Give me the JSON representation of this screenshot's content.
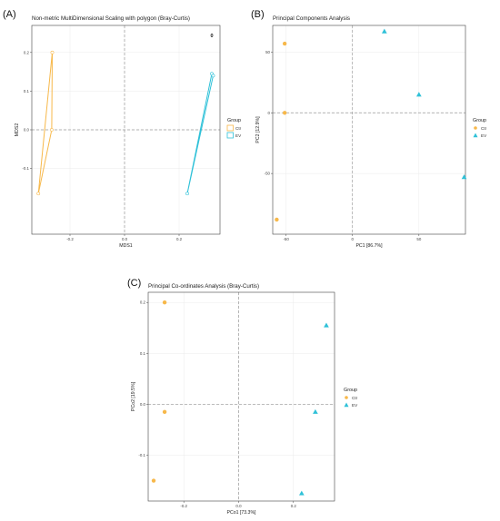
{
  "colors": {
    "ctr": "#F7B84A",
    "ev": "#2FC1D8",
    "zero_line": "#9a9a9a",
    "grid": "#ebebeb",
    "frame": "#444444"
  },
  "legend_title": "Group",
  "chart_data": [
    {
      "panel": "(A)",
      "type": "scatter",
      "title": "Non-metric MultiDimensional Scaling with polygon (Bray-Curtis)",
      "xlabel": "MDS1",
      "ylabel": "MDS2",
      "annotation": "0",
      "xlim": [
        -0.34,
        0.35
      ],
      "ylim": [
        -0.27,
        0.27
      ],
      "xticks": [
        -0.2,
        0.0,
        0.2
      ],
      "yticks": [
        -0.1,
        0.0,
        0.1,
        0.2
      ],
      "xtick_labels": [
        "-0.2",
        "0.0",
        "0.2"
      ],
      "ytick_labels": [
        "-0.1",
        "0.0",
        "0.1",
        "0.2"
      ],
      "polygon": true,
      "series": [
        {
          "name": "Ctr",
          "color": "#F7B84A",
          "marker": "circle",
          "x": [
            -0.265,
            -0.267,
            -0.316
          ],
          "y": [
            0.2,
            0.0,
            -0.165
          ]
        },
        {
          "name": "EV",
          "color": "#2FC1D8",
          "marker": "circle",
          "x": [
            0.32,
            0.325,
            0.23
          ],
          "y": [
            0.145,
            0.14,
            -0.165
          ]
        }
      ],
      "legend": [
        "Ctr",
        "EV"
      ]
    },
    {
      "panel": "(B)",
      "type": "scatter",
      "title": "Principal Components Analysis",
      "xlabel": "PC1 [86.7%]",
      "ylabel": "PC2 [12.9%]",
      "xlim": [
        -60,
        85
      ],
      "ylim": [
        -100,
        72
      ],
      "xticks": [
        -50,
        0,
        50
      ],
      "yticks": [
        -50,
        0,
        50
      ],
      "xtick_labels": [
        "-50",
        "0",
        "50"
      ],
      "ytick_labels": [
        "-50",
        "0",
        "50"
      ],
      "series": [
        {
          "name": "Ctr",
          "color": "#F7B84A",
          "marker": "circle",
          "x": [
            -51,
            -51,
            -57
          ],
          "y": [
            57,
            0,
            -88
          ]
        },
        {
          "name": "EV",
          "color": "#2FC1D8",
          "marker": "triangle",
          "x": [
            24,
            50,
            84
          ],
          "y": [
            67,
            15,
            -53
          ]
        }
      ],
      "legend": [
        "Ctr",
        "EV"
      ]
    },
    {
      "panel": "(C)",
      "type": "scatter",
      "title": "Principal Co-ordinates Analysis (Bray-Curtis)",
      "xlabel": "PCo1 [73.3%]",
      "ylabel": "PCo2 [19.5%]",
      "xlim": [
        -0.33,
        0.35
      ],
      "ylim": [
        -0.19,
        0.22
      ],
      "xticks": [
        -0.2,
        0.0,
        0.2
      ],
      "yticks": [
        -0.1,
        0.0,
        0.1,
        0.2
      ],
      "xtick_labels": [
        "-0.2",
        "0.0",
        "0.2"
      ],
      "ytick_labels": [
        "-0.1",
        "0.0",
        "0.1",
        "0.2"
      ],
      "series": [
        {
          "name": "Ctr",
          "color": "#F7B84A",
          "marker": "circle",
          "x": [
            -0.27,
            -0.27,
            -0.31
          ],
          "y": [
            0.2,
            -0.015,
            -0.15
          ]
        },
        {
          "name": "EV",
          "color": "#2FC1D8",
          "marker": "triangle",
          "x": [
            0.32,
            0.28,
            0.23
          ],
          "y": [
            0.155,
            -0.015,
            -0.175
          ]
        }
      ],
      "legend": [
        "Ctr",
        "EV"
      ]
    }
  ]
}
